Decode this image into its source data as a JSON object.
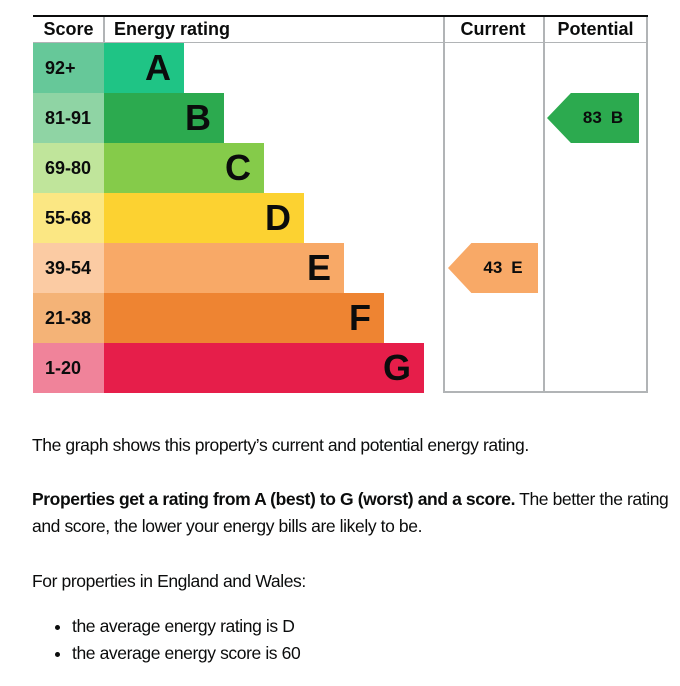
{
  "chart_data": {
    "type": "epc-energy-rating-graph",
    "headers": {
      "score": "Score",
      "energy_rating": "Energy rating",
      "current": "Current",
      "potential": "Potential"
    },
    "bands": [
      {
        "label": "A",
        "score_range": "92+",
        "color": "#1fc485",
        "score_bg": "#66c899"
      },
      {
        "label": "B",
        "score_range": "81-91",
        "color": "#2caa4f",
        "score_bg": "#8fd4a4"
      },
      {
        "label": "C",
        "score_range": "69-80",
        "color": "#85cb4a",
        "score_bg": "#c0e59b"
      },
      {
        "label": "D",
        "score_range": "55-68",
        "color": "#fcd231",
        "score_bg": "#fbe783"
      },
      {
        "label": "E",
        "score_range": "39-54",
        "color": "#f8a967",
        "score_bg": "#fbcba3"
      },
      {
        "label": "F",
        "score_range": "21-38",
        "color": "#ee8432",
        "score_bg": "#f4b377"
      },
      {
        "label": "G",
        "score_range": "1-20",
        "color": "#e61e4a",
        "score_bg": "#f0839a"
      }
    ],
    "current": {
      "score": "43",
      "band": "E",
      "band_index": 4,
      "arrow_color": "#f8a967"
    },
    "potential": {
      "score": "83",
      "band": "B",
      "band_index": 1,
      "arrow_color": "#2caa4f"
    },
    "colors": {
      "text": "#0b0c0c",
      "grid": "#b1b4b6"
    }
  },
  "text": {
    "para1": "The graph shows this property’s current and potential energy rating.",
    "para2_bold": "Properties get a rating from A (best) to G (worst) and a score.",
    "para2_rest": " The better the rating and score, the lower your energy bills are likely to be.",
    "para3": "For properties in England and Wales:",
    "bullets": [
      "the average energy rating is D",
      "the average energy score is 60"
    ]
  }
}
